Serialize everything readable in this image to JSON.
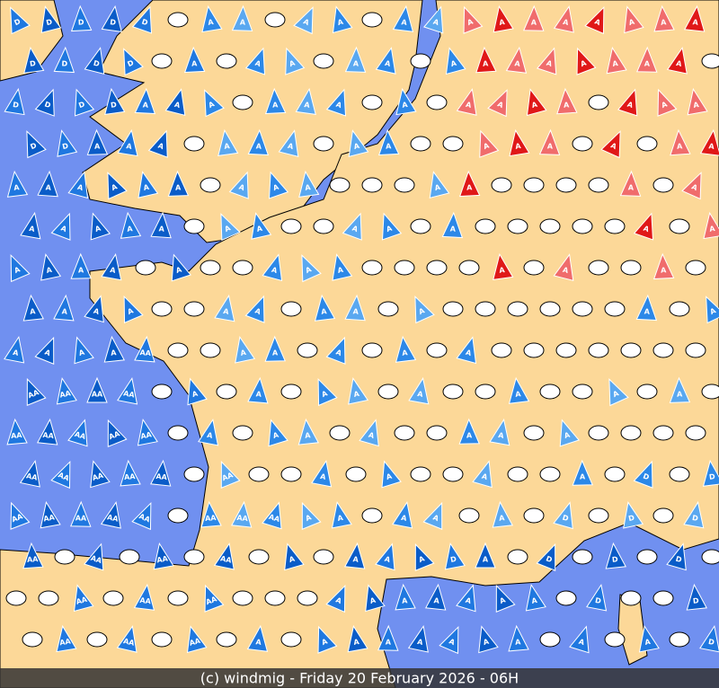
{
  "footer": "(c) windmig - Friday 20 February 2026 - 06H",
  "rows": [
    [
      "D",
      "D",
      "D",
      "D",
      "D",
      null,
      "A",
      "A",
      null,
      "A",
      "A",
      null,
      "A",
      "A",
      "A",
      "A",
      "A",
      "A",
      "A",
      "A",
      "A",
      "A"
    ],
    [
      "D",
      "D",
      "D",
      "D",
      null,
      "A",
      null,
      "A",
      "A",
      null,
      "A",
      "A",
      null,
      "A",
      "A",
      "A",
      "A",
      "A",
      "A",
      "A",
      "A",
      null
    ],
    [
      "D",
      "D",
      "D",
      "D",
      "A",
      "A",
      "A",
      null,
      "A",
      "A",
      "A",
      null,
      "A",
      null,
      "A",
      "A",
      "A",
      "A",
      null,
      "A",
      "A",
      "A"
    ],
    [
      "D",
      "D",
      "A",
      "A",
      "A",
      null,
      "A",
      "A",
      "A",
      null,
      "A",
      "A",
      null,
      null,
      "A",
      "A",
      "A",
      null,
      "A",
      null,
      "A",
      "A"
    ],
    [
      "A",
      "A",
      "A",
      "A",
      "A",
      "A",
      null,
      "A",
      "A",
      "A",
      null,
      null,
      null,
      "A",
      "A",
      null,
      null,
      null,
      null,
      "A",
      null,
      "A"
    ],
    [
      "A",
      "A",
      "A",
      "A",
      "A",
      null,
      "A",
      "A",
      null,
      null,
      "A",
      "A",
      null,
      "A",
      null,
      null,
      null,
      null,
      null,
      "A",
      null,
      "A"
    ],
    [
      "A",
      "A",
      "A",
      "A",
      null,
      "A",
      null,
      null,
      "A",
      "A",
      "A",
      null,
      null,
      null,
      null,
      "A",
      null,
      "A",
      null,
      null,
      "A",
      null
    ],
    [
      "A",
      "A",
      "A",
      "A",
      null,
      null,
      "A",
      "A",
      null,
      "A",
      "A",
      null,
      "A",
      null,
      null,
      null,
      null,
      null,
      null,
      "A",
      null,
      "A"
    ],
    [
      "A",
      "A",
      "A",
      "A",
      "AA",
      null,
      null,
      "A",
      "A",
      null,
      "A",
      null,
      "A",
      null,
      "A",
      null,
      null,
      null,
      null,
      null,
      null,
      null
    ],
    [
      "AA",
      "AA",
      "AA",
      "AA",
      null,
      "A",
      null,
      "A",
      null,
      "A",
      "A",
      null,
      "A",
      null,
      null,
      "A",
      null,
      null,
      "A",
      null,
      "A",
      null
    ],
    [
      "AA",
      "AA",
      "AA",
      "AA",
      "AA",
      null,
      "A",
      null,
      "A",
      "A",
      null,
      "A",
      null,
      null,
      "A",
      "A",
      null,
      "A",
      null,
      null,
      null,
      null
    ],
    [
      "AA",
      "AA",
      "AA",
      "AA",
      "AA",
      null,
      "AA",
      null,
      null,
      "A",
      null,
      "A",
      null,
      null,
      "A",
      null,
      null,
      "A",
      null,
      "D",
      null,
      "D"
    ],
    [
      "AA",
      "AA",
      "AA",
      "AA",
      "AA",
      null,
      "AA",
      "AA",
      "AA",
      "A",
      "A",
      null,
      "A",
      "A",
      null,
      "A",
      null,
      "D",
      null,
      "D",
      null,
      "D"
    ],
    [
      "AA",
      null,
      "AA",
      null,
      "AA",
      null,
      "AA",
      null,
      "A",
      null,
      "A",
      "A",
      "A",
      "D",
      "A",
      null,
      "D",
      null,
      "D",
      null,
      "D",
      null
    ],
    [
      null,
      null,
      "AA",
      null,
      "AA",
      null,
      "AA",
      null,
      null,
      null,
      "A",
      "A",
      "A",
      "A",
      "A",
      "A",
      "A",
      null,
      "D",
      null,
      null,
      "D"
    ],
    [
      null,
      "AA",
      null,
      "AA",
      null,
      "AA",
      null,
      "A",
      null,
      "A",
      "A",
      "A",
      "A",
      "A",
      "A",
      "A",
      null,
      "A",
      null,
      "A",
      null,
      "D"
    ]
  ]
}
